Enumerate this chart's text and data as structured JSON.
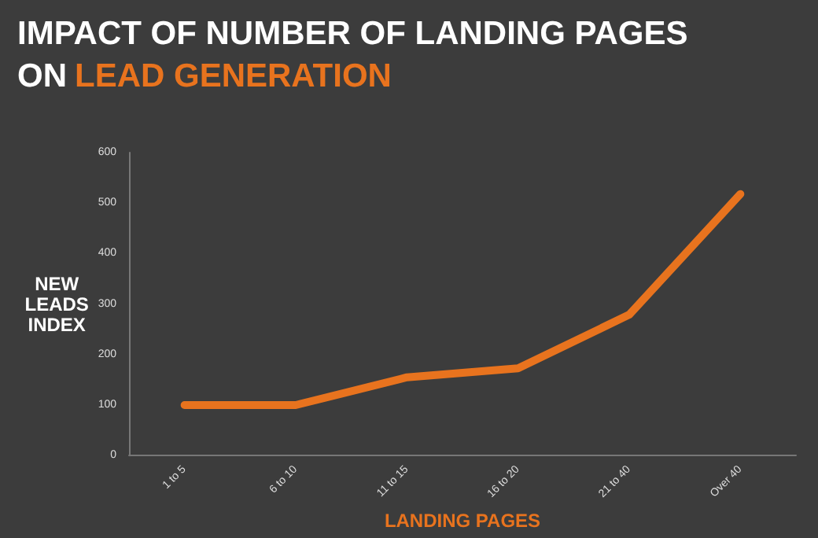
{
  "chart_data": {
    "type": "line",
    "title": "IMPACT OF NUMBER OF LANDING PAGES",
    "subtitle": "ON LEAD GENERATION",
    "xlabel": "LANDING PAGES",
    "ylabel": "NEW LEADS INDEX",
    "categories": [
      "1 to 5",
      "6 to 10",
      "11 to 15",
      "16 to 20",
      "21 to 40",
      "Over 40"
    ],
    "series": [
      {
        "color": "#e8731e",
        "values": [
          100,
          100,
          155,
          173,
          279,
          518
        ]
      }
    ],
    "ylim": [
      0,
      600
    ],
    "yticks": [
      0,
      100,
      200,
      300,
      400,
      500,
      600
    ],
    "grid": false,
    "marker": "none",
    "line_style": "solid"
  }
}
